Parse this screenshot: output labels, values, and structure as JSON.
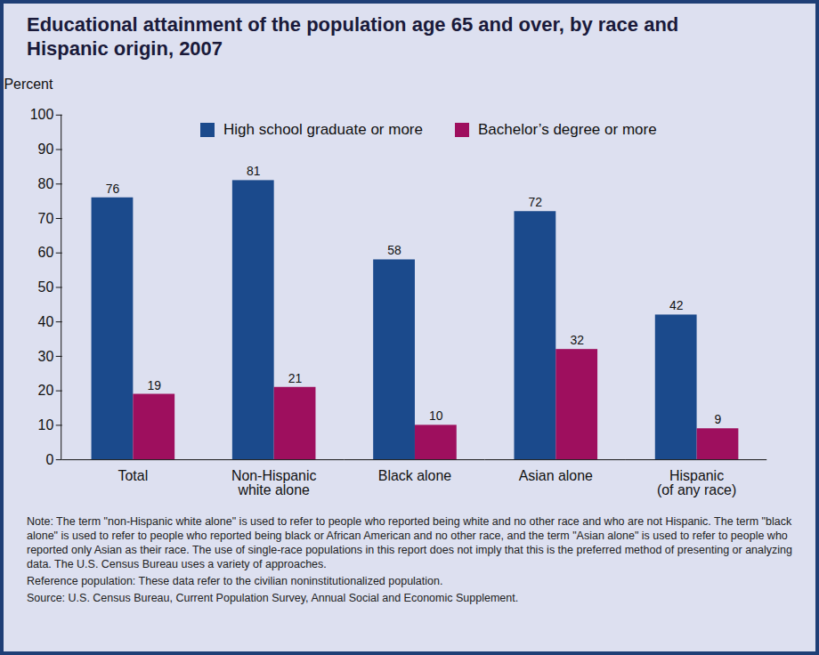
{
  "chart_data": {
    "type": "bar",
    "title": "Educational attainment of the population age 65 and over, by race and Hispanic origin, 2007",
    "y_label": "Percent",
    "categories": [
      "Total",
      "Non-Hispanic\nwhite alone",
      "Black alone",
      "Asian alone",
      "Hispanic\n(of any race)"
    ],
    "series": [
      {
        "name": "High school graduate or more",
        "color": "#1b4a8c",
        "values": [
          76,
          81,
          58,
          72,
          42
        ]
      },
      {
        "name": "Bachelor’s degree or more",
        "color": "#9e0f5e",
        "values": [
          19,
          21,
          10,
          32,
          9
        ]
      }
    ],
    "ylim": [
      0,
      100
    ],
    "yticks": [
      0,
      10,
      20,
      30,
      40,
      50,
      60,
      70,
      80,
      90,
      100
    ],
    "grid": false,
    "legend": "top",
    "data_labels": true,
    "note": "Note: The term \"non-Hispanic white alone\" is used to refer to people who reported being white and no other race and who are not Hispanic. The term \"black alone\" is used to refer to people who reported being black or African American and no other race, and the term \"Asian alone\" is used to refer to people who reported only Asian as their race. The use of single-race populations in this report does not imply that this is the preferred method of presenting or analyzing data. The U.S. Census Bureau uses a variety of approaches.",
    "reference": "Reference population: These data refer to the civilian noninstitutionalized population.",
    "source": "Source: U.S. Census Bureau, Current Population Survey, Annual Social and Economic Supplement."
  }
}
